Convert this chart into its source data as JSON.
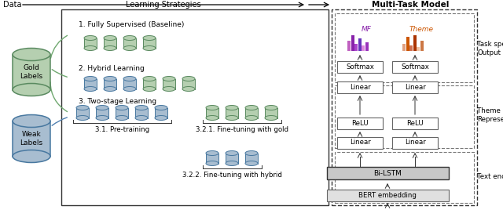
{
  "title_data": "Data",
  "title_learning": "Learning Strategies",
  "title_multitask": "Multi-Task Model",
  "label_gold": "Gold\nLabels",
  "label_weak": "Weak\nLabels",
  "label_fully": "1. Fully Supervised (Baseline)",
  "label_hybrid": "2. Hybrid Learning",
  "label_twostage": "3. Two-stage Learning",
  "label_pretraining": "3.1. Pre-training",
  "label_finetune_gold": "3.2.1. Fine-tuning with gold",
  "label_finetune_hybrid": "3.2.2. Fine-tuning with hybrid",
  "label_task_output": "Task specific\nOutput",
  "label_theme_mf": "Theme & MF\nRepresentation",
  "label_text_enc": "Text encoding",
  "label_mf": "MF",
  "label_theme": "Theme",
  "color_green_fill": "#b5cfb0",
  "color_green_edge": "#5a8a60",
  "color_blue_fill": "#a8bdd0",
  "color_blue_edge": "#4878a0",
  "bg_color": "#ffffff",
  "box_ec": "#555555",
  "arrow_color": "#333333",
  "green_connector": "#70a870",
  "blue_connector": "#5080b0"
}
